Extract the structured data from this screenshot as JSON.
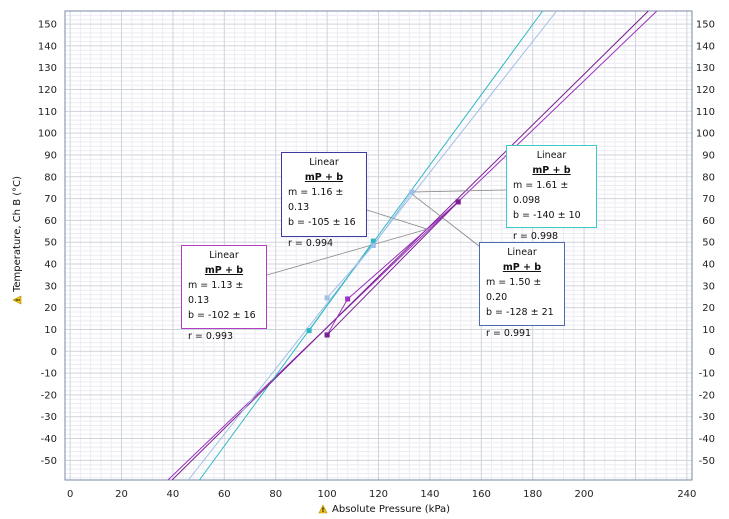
{
  "chart_data": {
    "type": "scatter",
    "xlabel": "Absolute Pressure (kPa)",
    "ylabel": "Temperature, Ch B (°C)",
    "xlim": [
      -2,
      242
    ],
    "ylim": [
      -59,
      156
    ],
    "x_ticks": [
      0,
      20,
      40,
      60,
      80,
      100,
      120,
      140,
      160,
      180,
      200,
      240
    ],
    "x_tick_labels": [
      "0",
      "20",
      "40",
      "60",
      "80",
      "100",
      "120",
      "140",
      "160",
      "180",
      "200",
      "240"
    ],
    "y_ticks": [
      -50,
      -40,
      -30,
      -20,
      -10,
      0,
      10,
      20,
      30,
      40,
      50,
      60,
      70,
      80,
      90,
      100,
      110,
      120,
      130,
      140,
      150
    ],
    "grid": true,
    "series": [
      {
        "color": "#9b2fbf",
        "points": [
          [
            100,
            7.5
          ],
          [
            108,
            24
          ],
          [
            151,
            68.5
          ]
        ],
        "fit": {
          "m": 1.13,
          "b": -102
        }
      },
      {
        "color": "#2fb8c4",
        "points": [
          [
            93,
            9.5
          ],
          [
            118,
            50.5
          ]
        ],
        "fit": {
          "m": 1.61,
          "b": -140
        }
      },
      {
        "color": "#7a2090",
        "points": [
          [
            100,
            7.5
          ],
          [
            151,
            68.5
          ]
        ],
        "fit": {
          "m": 1.16,
          "b": -105
        }
      },
      {
        "color": "#9fc0e6",
        "points": [
          [
            100,
            24.5
          ],
          [
            118,
            48.5
          ],
          [
            133,
            73
          ]
        ],
        "fit": {
          "m": 1.5,
          "b": -128
        }
      }
    ],
    "fit_boxes": [
      {
        "title": "Linear",
        "equation": "mP + b",
        "m": "m = 1.13 ± 0.13",
        "b": "b  = -102 ± 16",
        "r": "r = 0.993",
        "border": "#b040c0"
      },
      {
        "title": "Linear",
        "equation": "mP + b",
        "m": "m = 1.16 ± 0.13",
        "b": "b  = -105 ± 16",
        "r": "r = 0.994",
        "border": "#3a3aa0"
      },
      {
        "title": "Linear",
        "equation": "mP + b",
        "m": "m = 1.61 ± 0.098",
        "b": "b  = -140 ± 10",
        "r": "r = 0.998",
        "border": "#40c8c8"
      },
      {
        "title": "Linear",
        "equation": "mP + b",
        "m": "m = 1.50 ± 0.20",
        "b": "b  = -128 ± 21",
        "r": "r = 0.991",
        "border": "#4a6ab0"
      }
    ]
  }
}
